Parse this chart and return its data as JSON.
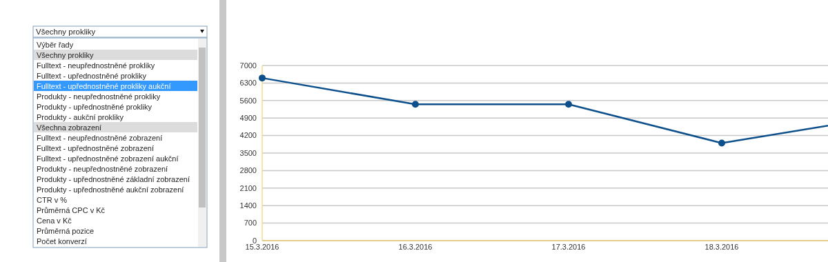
{
  "chart_data": {
    "type": "line",
    "categories": [
      "15.3.2016",
      "16.3.2016",
      "17.3.2016",
      "18.3.2016",
      null
    ],
    "series": [
      {
        "color": "#0d4f8b",
        "values": [
          6500,
          5450,
          5450,
          3900,
          4900
        ]
      }
    ],
    "ylim": [
      0,
      7000
    ],
    "yticks": [
      0,
      700,
      1400,
      2100,
      2800,
      3500,
      4200,
      4900,
      5600,
      6300,
      7000
    ],
    "grid": "y",
    "marker": "circle",
    "line_style": "solid",
    "annotations": [
      "Všechny prokliky",
      "Výběr řady",
      "Všechny prokliky",
      "Fulltext - neupřednostněné prokliky",
      "Fulltext - upřednostněné prokliky",
      "Fulltext - upřednostněné prokliky aukční",
      "Produkty - neupřednostněné prokliky",
      "Produkty - upřednostněné prokliky",
      "Produkty - aukční prokliky",
      "Všechna zobrazení",
      "Fulltext - neupřednostněné zobrazení",
      "Fulltext - upřednostněné zobrazení",
      "Fulltext - upřednostněné zobrazení aukční",
      "Produkty - neupřednostněné zobrazení",
      "Produkty - upřednostněné základní zobrazení",
      "Produkty - upřednostněné aukční zobrazení",
      "CTR v %",
      "Průměrná CPC v Kč",
      "Cena v Kč",
      "Průměrná pozice",
      "Počet konverzí"
    ]
  }
}
